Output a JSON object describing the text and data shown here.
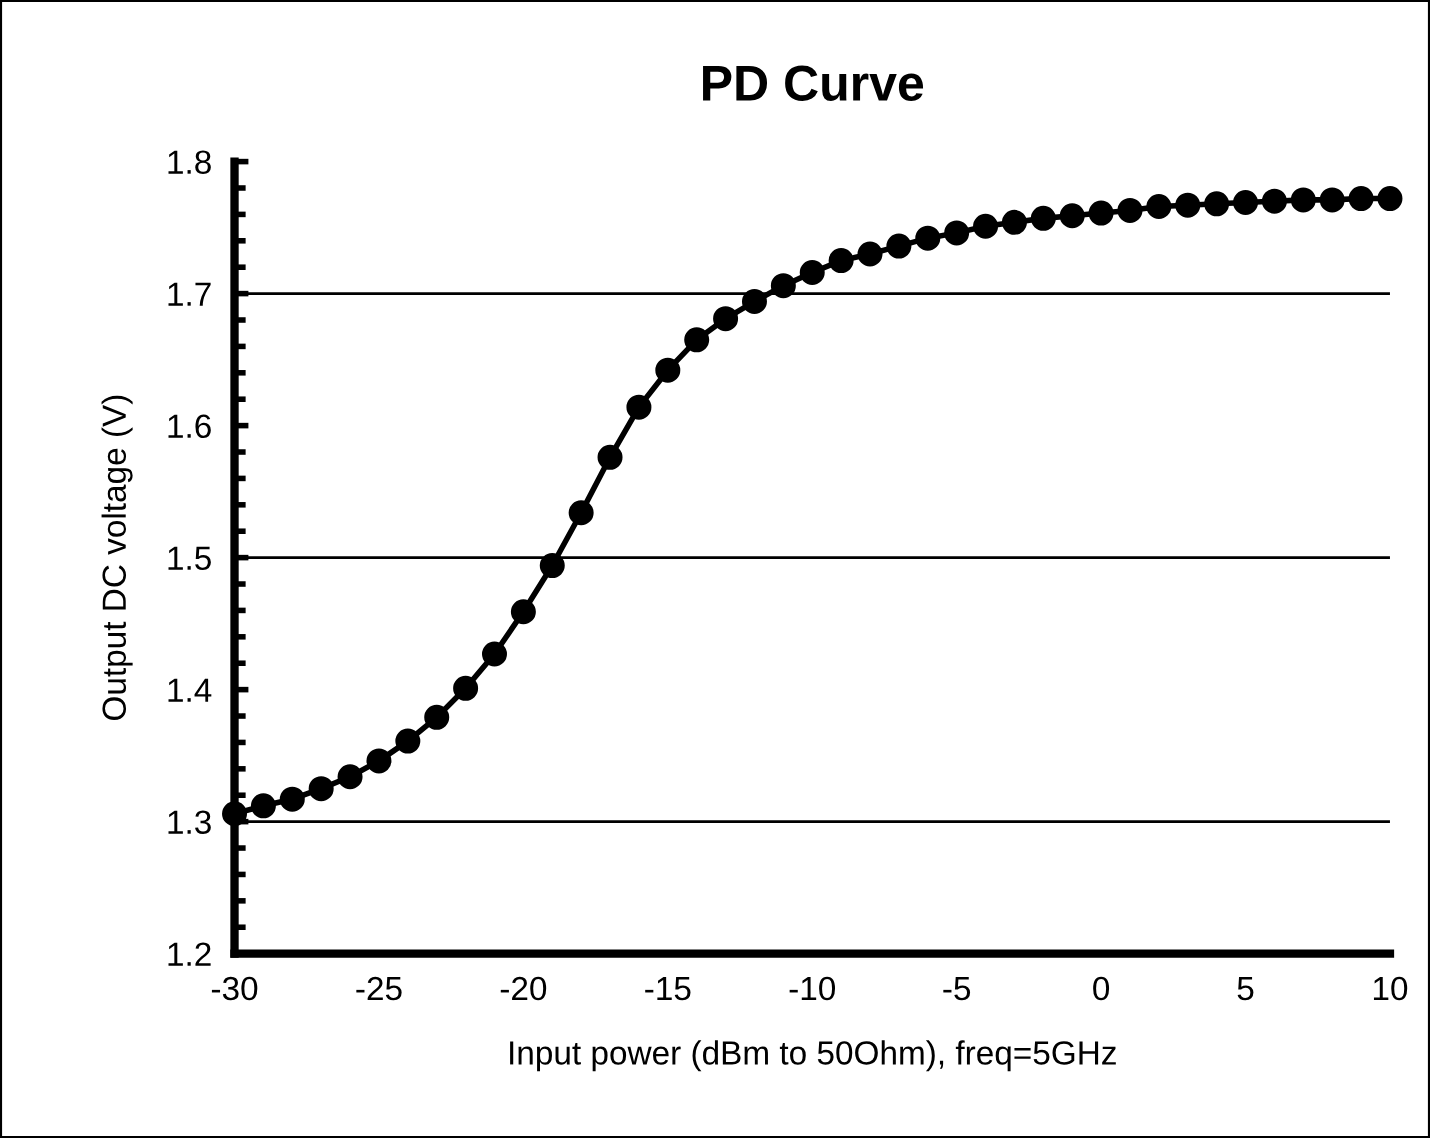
{
  "chart_data": {
    "type": "line",
    "title": "PD Curve",
    "xlabel": "Input power (dBm to 50Ohm), freq=5GHz",
    "ylabel": "Output DC voltage (V)",
    "x": [
      -30,
      -29,
      -28,
      -27,
      -26,
      -25,
      -24,
      -23,
      -22,
      -21,
      -20,
      -19,
      -18,
      -17,
      -16,
      -15,
      -14,
      -13,
      -12,
      -11,
      -10,
      -9,
      -8,
      -7,
      -6,
      -5,
      -4,
      -3,
      -2,
      -1,
      0,
      1,
      2,
      3,
      4,
      5,
      6,
      7,
      8,
      9,
      10
    ],
    "series": [
      {
        "color": "#000000",
        "values": [
          1.306,
          1.312,
          1.317,
          1.325,
          1.334,
          1.346,
          1.361,
          1.379,
          1.401,
          1.427,
          1.459,
          1.494,
          1.534,
          1.576,
          1.614,
          1.642,
          1.665,
          1.681,
          1.694,
          1.706,
          1.716,
          1.725,
          1.73,
          1.736,
          1.742,
          1.746,
          1.751,
          1.754,
          1.757,
          1.759,
          1.761,
          1.763,
          1.766,
          1.767,
          1.768,
          1.769,
          1.77,
          1.771,
          1.771,
          1.772,
          1.772
        ]
      }
    ],
    "xlim": [
      -30,
      10
    ],
    "xticks": [
      -30,
      -25,
      -20,
      -15,
      -10,
      -5,
      0,
      5,
      10
    ],
    "ylim": [
      1.2,
      1.8
    ],
    "yticks": [
      1.2,
      1.3,
      1.4,
      1.5,
      1.6,
      1.7,
      1.8
    ],
    "ref_lines": [
      {
        "axis": "y",
        "value": 1.3,
        "color": "#000000"
      },
      {
        "axis": "y",
        "value": 1.5,
        "color": "#000000"
      },
      {
        "axis": "y",
        "value": 1.7,
        "color": "#000000"
      }
    ],
    "marker": "circle",
    "line_style": "solid",
    "grid": false,
    "legend": false
  }
}
